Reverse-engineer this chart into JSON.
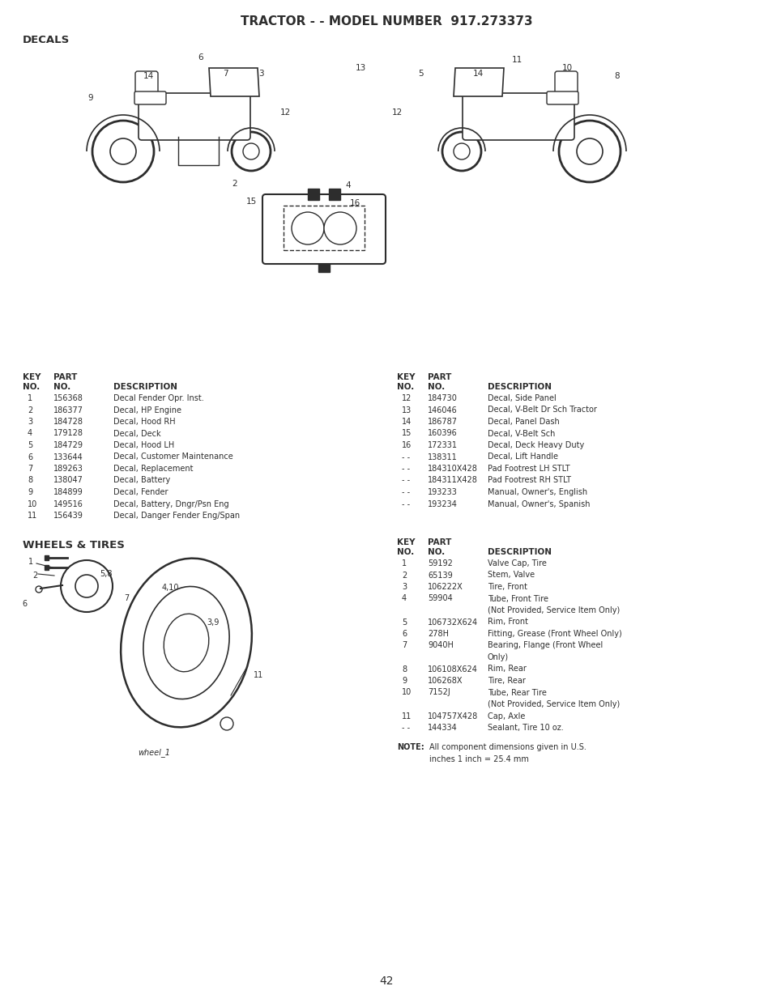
{
  "title": "TRACTOR - - MODEL NUMBER  917.273373",
  "section1": "DECALS",
  "section2": "WHEELS & TIRES",
  "page_number": "42",
  "bg_color": "#ffffff",
  "text_color": "#2d2d2d",
  "title_fontsize": 11,
  "section_fontsize": 9.5,
  "table_fontsize": 7.5,
  "decals_left": [
    [
      "1",
      "156368",
      "Decal Fender Opr. Inst."
    ],
    [
      "2",
      "186377",
      "Decal, HP Engine"
    ],
    [
      "3",
      "184728",
      "Decal, Hood RH"
    ],
    [
      "4",
      "179128",
      "Decal, Deck"
    ],
    [
      "5",
      "184729",
      "Decal, Hood LH"
    ],
    [
      "6",
      "133644",
      "Decal, Customer Maintenance"
    ],
    [
      "7",
      "189263",
      "Decal, Replacement"
    ],
    [
      "8",
      "138047",
      "Decal, Battery"
    ],
    [
      "9",
      "184899",
      "Decal, Fender"
    ],
    [
      "10",
      "149516",
      "Decal, Battery, Dngr/Psn Eng"
    ],
    [
      "11",
      "156439",
      "Decal, Danger Fender Eng/Span"
    ]
  ],
  "decals_right": [
    [
      "12",
      "184730",
      "Decal, Side Panel"
    ],
    [
      "13",
      "146046",
      "Decal, V-Belt Dr Sch Tractor"
    ],
    [
      "14",
      "186787",
      "Decal, Panel Dash"
    ],
    [
      "15",
      "160396",
      "Decal, V-Belt Sch"
    ],
    [
      "16",
      "172331",
      "Decal, Deck Heavy Duty"
    ],
    [
      "- -",
      "138311",
      "Decal, Lift Handle"
    ],
    [
      "- -",
      "184310X428",
      "Pad Footrest LH STLT"
    ],
    [
      "- -",
      "184311X428",
      "Pad Footrest RH STLT"
    ],
    [
      "- -",
      "193233",
      "Manual, Owner's, English"
    ],
    [
      "- -",
      "193234",
      "Manual, Owner's, Spanish"
    ]
  ],
  "wheels_rows": [
    [
      "1",
      "59192",
      "Valve Cap, Tire"
    ],
    [
      "2",
      "65139",
      "Stem, Valve"
    ],
    [
      "3",
      "106222X",
      "Tire, Front"
    ],
    [
      "4",
      "59904",
      "Tube, Front Tire"
    ],
    [
      "",
      "",
      "(Not Provided, Service Item Only)"
    ],
    [
      "5",
      "106732X624",
      "Rim, Front"
    ],
    [
      "6",
      "278H",
      "Fitting, Grease (Front Wheel Only)"
    ],
    [
      "7",
      "9040H",
      "Bearing, Flange (Front Wheel"
    ],
    [
      "",
      "",
      "Only)"
    ],
    [
      "8",
      "106108X624",
      "Rim, Rear"
    ],
    [
      "9",
      "106268X",
      "Tire, Rear"
    ],
    [
      "10",
      "7152J",
      "Tube, Rear Tire"
    ],
    [
      "",
      "",
      "(Not Provided, Service Item Only)"
    ],
    [
      "11",
      "104757X428",
      "Cap, Axle"
    ],
    [
      "- -",
      "144334",
      "Sealant, Tire 10 oz."
    ]
  ],
  "wheel_img_label": "wheel_1"
}
